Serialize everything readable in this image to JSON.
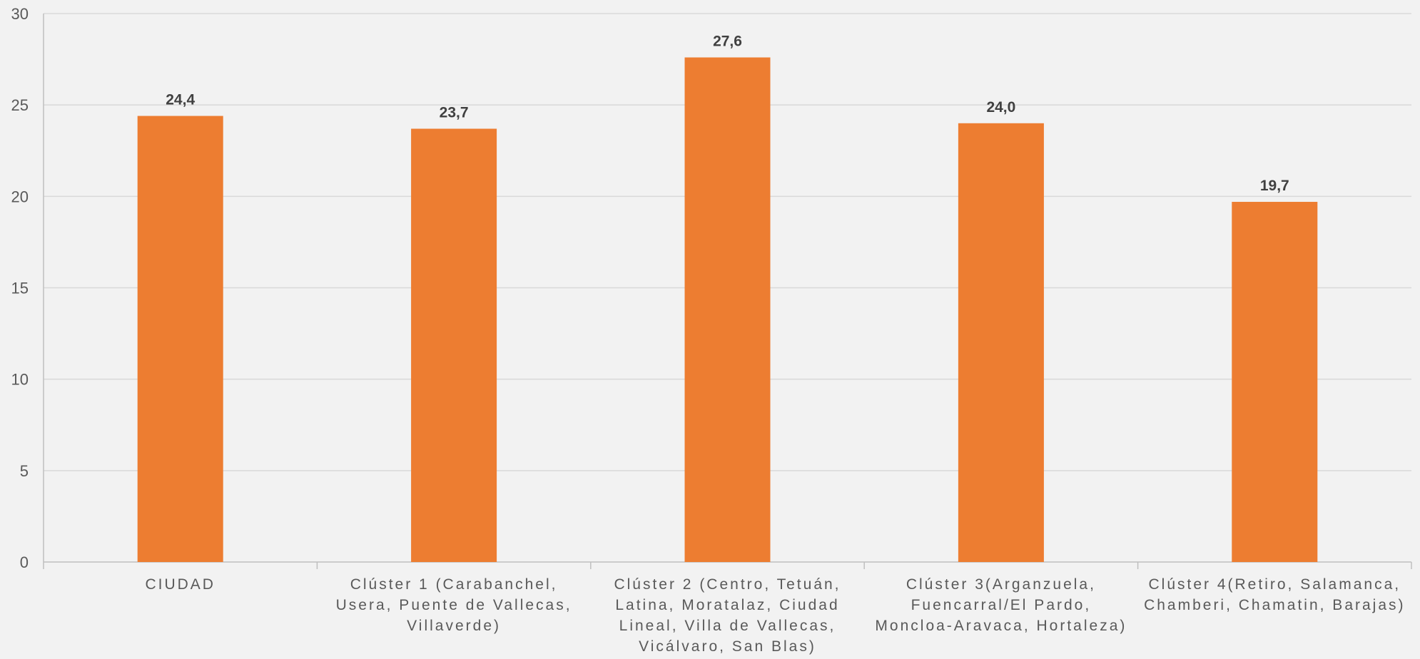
{
  "chart_data": {
    "type": "bar",
    "title": "",
    "xlabel": "",
    "ylabel": "",
    "ylim": [
      0,
      30
    ],
    "yticks": [
      0,
      5,
      10,
      15,
      20,
      25,
      30
    ],
    "grid": true,
    "legend": "none",
    "bar_color": "#ed7d31",
    "categories": [
      "CIUDAD",
      "Clúster 1 (Carabanchel, Usera, Puente de Vallecas, Villaverde)",
      "Clúster 2 (Centro, Tetuán, Latina, Moratalaz, Ciudad Lineal, Villa de Vallecas, Vicálvaro, San Blas)",
      "Clúster 3(Arganzuela, Fuencarral/El Pardo, Moncloa-Aravaca, Hortaleza)",
      "Clúster 4(Retiro, Salamanca, Chamberi, Chamatin, Barajas)"
    ],
    "category_lines": [
      [
        "CIUDAD"
      ],
      [
        "Clúster 1 (Carabanchel,",
        "Usera, Puente de Vallecas,",
        "Villaverde)"
      ],
      [
        "Clúster 2 (Centro, Tetuán,",
        "Latina, Moratalaz, Ciudad",
        "Lineal, Villa de Vallecas,",
        "Vicálvaro, San Blas)"
      ],
      [
        "Clúster 3(Arganzuela,",
        "Fuencarral/El Pardo,",
        "Moncloa-Aravaca, Hortaleza)"
      ],
      [
        "Clúster 4(Retiro, Salamanca,",
        "Chamberi, Chamatin, Barajas)"
      ]
    ],
    "values": [
      24.4,
      23.7,
      27.6,
      24.0,
      19.7
    ],
    "data_labels": [
      "24,4",
      "23,7",
      "27,6",
      "24,0",
      "19,7"
    ]
  }
}
